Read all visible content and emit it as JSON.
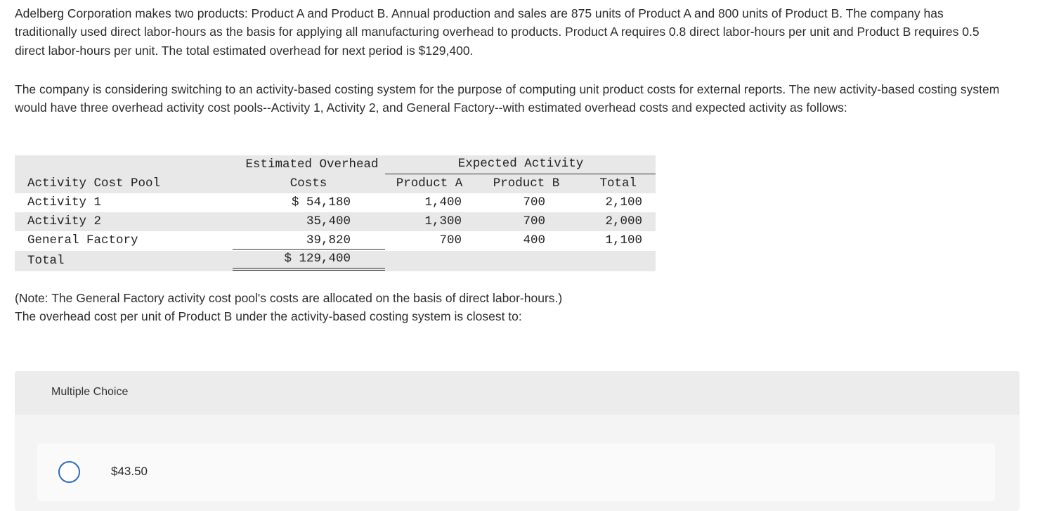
{
  "question": {
    "paragraph1": "Adelberg Corporation makes two products: Product A and Product B. Annual production and sales are 875 units of Product A and 800 units of Product B. The company has traditionally used direct labor-hours as the basis for applying all manufacturing overhead to products. Product A requires 0.8 direct labor-hours per unit and Product B requires 0.5 direct labor-hours per unit. The total estimated overhead for next period is $129,400.",
    "paragraph2": "The company is considering switching to an activity-based costing system for the purpose of computing unit product costs for external reports. The new activity-based costing system would have three overhead activity cost pools--Activity 1, Activity 2, and General Factory--with estimated overhead costs and expected activity as follows:",
    "note": "(Note: The General Factory activity cost pool's costs are allocated on the basis of direct labor-hours.)",
    "prompt": "The overhead cost per unit of Product B under the activity-based costing system is closest to:"
  },
  "table": {
    "header_overhead_line1": "Estimated Overhead",
    "header_overhead_line2": "Costs",
    "header_expected": "Expected Activity",
    "header_pool": "Activity Cost Pool",
    "header_product_a": "Product A",
    "header_product_b": "Product B",
    "header_total": "Total",
    "rows": [
      {
        "pool": "Activity 1",
        "cost": "$ 54,180",
        "a": "1,400",
        "b": "700",
        "total": "2,100"
      },
      {
        "pool": "Activity 2",
        "cost": "35,400",
        "a": "1,300",
        "b": "700",
        "total": "2,000"
      },
      {
        "pool": "General Factory",
        "cost": "39,820",
        "a": "700",
        "b": "400",
        "total": "1,100"
      }
    ],
    "total_label": "Total",
    "total_cost": "$ 129,400"
  },
  "multiple_choice": {
    "heading": "Multiple Choice",
    "options": [
      {
        "label": "$43.50",
        "selected": false
      }
    ]
  },
  "colors": {
    "band": "#e8e8e8",
    "radio_border": "#2f6db3",
    "panel": "#f4f4f4"
  }
}
